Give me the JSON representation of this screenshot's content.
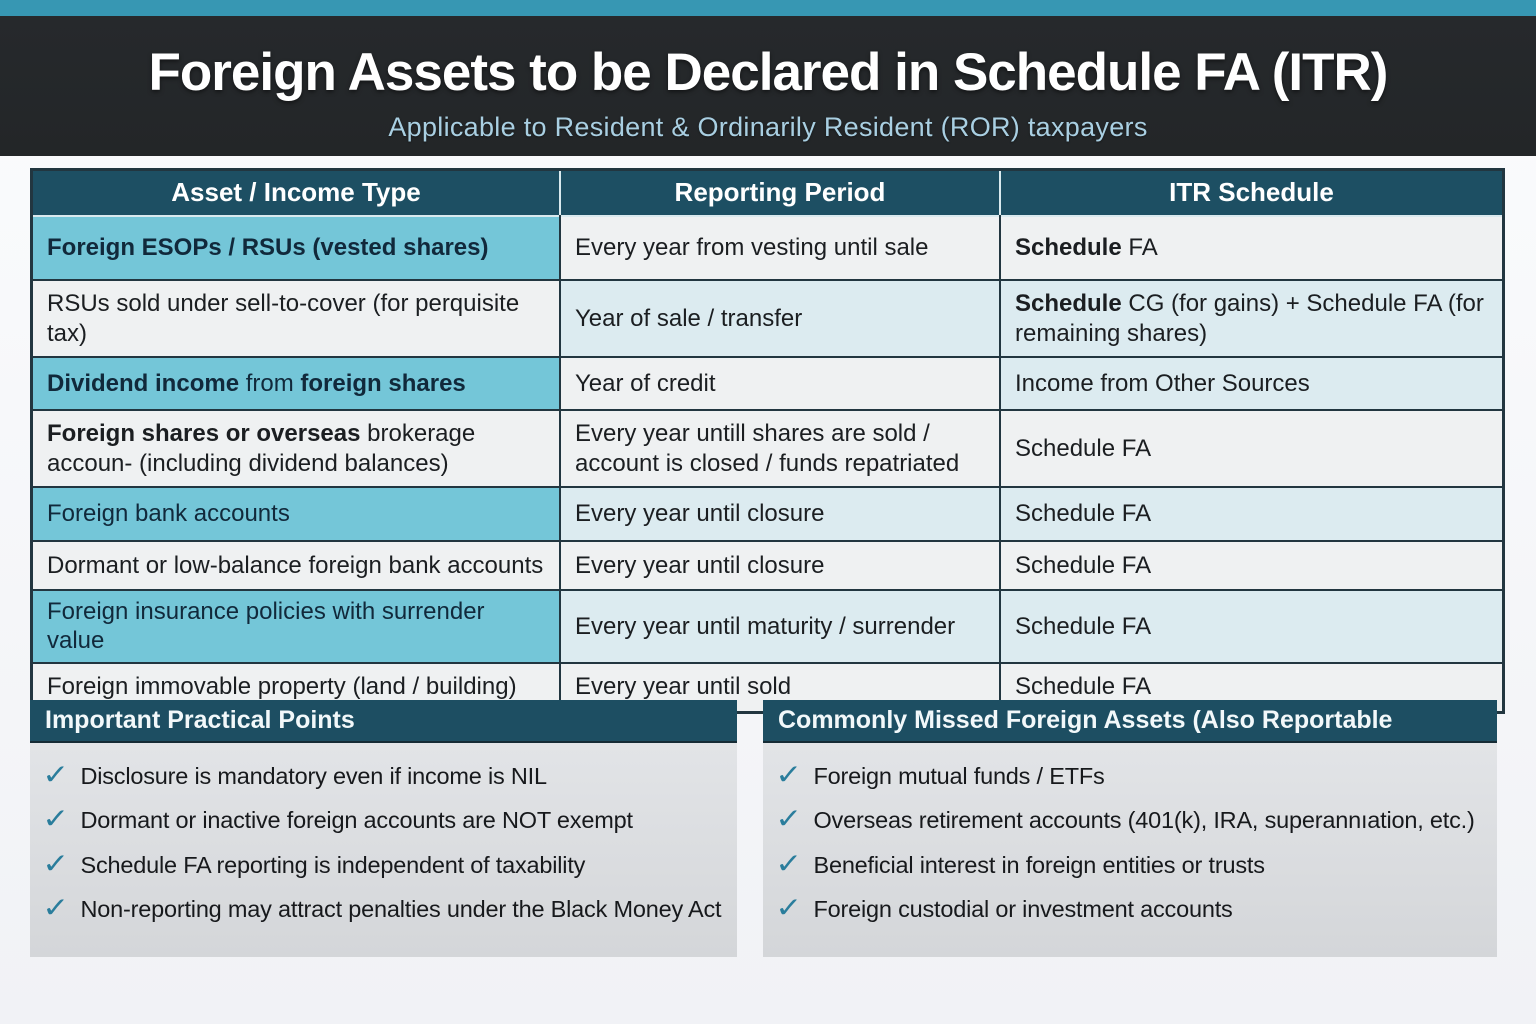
{
  "header": {
    "title": "Foreign Assets to be Declared in Schedule FA (ITR)",
    "subtitle": "Applicable to Resident & Ordinarily Resident (ROR) taxpayers"
  },
  "table": {
    "columns": [
      "Asset / Income Type",
      "Reporting Period",
      "ITR Schedule"
    ],
    "rows": [
      {
        "asset": [
          {
            "t": "Foreign ESOPs / RSUs (vested shares)",
            "b": true
          }
        ],
        "period": [
          {
            "t": "Every year from vesting until sale"
          }
        ],
        "schedule": [
          {
            "t": "Schedule",
            "b": true
          },
          {
            "t": " FA"
          }
        ],
        "asset_bg": "teal",
        "period_bg": "white",
        "schedule_bg": "white"
      },
      {
        "asset": [
          {
            "t": "RSUs sold under sell-to-cover (for perquisite tax)"
          }
        ],
        "period": [
          {
            "t": "Year of sale / transfer"
          }
        ],
        "schedule": [
          {
            "t": "Schedule",
            "b": true
          },
          {
            "t": " CG (for gains) + Schedule FA (for remaining shares)"
          }
        ],
        "asset_bg": "white",
        "period_bg": "blue",
        "schedule_bg": "blue"
      },
      {
        "asset": [
          {
            "t": "Dividend income ",
            "b": true
          },
          {
            "t": "from "
          },
          {
            "t": "foreign shares",
            "b": true
          }
        ],
        "period": [
          {
            "t": "Year of credit"
          }
        ],
        "schedule": [
          {
            "t": "Income from Other Sources"
          }
        ],
        "asset_bg": "teal",
        "period_bg": "white",
        "schedule_bg": "blue"
      },
      {
        "asset": [
          {
            "t": "Foreign shares or overseas",
            "b": true
          },
          {
            "t": " brokerage accoun- (including dividend balances)"
          }
        ],
        "period": [
          {
            "t": "Every year untill shares are sold / account is closed / funds repatriated"
          }
        ],
        "schedule": [
          {
            "t": "Schedule FA"
          }
        ],
        "asset_bg": "white",
        "period_bg": "white",
        "schedule_bg": "white"
      },
      {
        "asset": [
          {
            "t": "Foreign bank accounts"
          }
        ],
        "period": [
          {
            "t": "Every year until closure"
          }
        ],
        "schedule": [
          {
            "t": "Schedule FA"
          }
        ],
        "asset_bg": "teal",
        "period_bg": "blue",
        "schedule_bg": "blue"
      },
      {
        "asset": [
          {
            "t": "Dormant or low-balance foreign bank accounts"
          }
        ],
        "period": [
          {
            "t": "Every year until closure"
          }
        ],
        "schedule": [
          {
            "t": "Schedule FA"
          }
        ],
        "asset_bg": "white",
        "period_bg": "white",
        "schedule_bg": "white"
      },
      {
        "asset": [
          {
            "t": "Foreign insurance policies with surrender value"
          }
        ],
        "period": [
          {
            "t": "Every year until maturity / surrender"
          }
        ],
        "schedule": [
          {
            "t": "Schedule FA"
          }
        ],
        "asset_bg": "teal",
        "period_bg": "blue",
        "schedule_bg": "blue"
      },
      {
        "asset": [
          {
            "t": "Foreign immovable property (land / building)"
          }
        ],
        "period": [
          {
            "t": "Every year until sold"
          }
        ],
        "schedule": [
          {
            "t": "Schedule FA"
          }
        ],
        "asset_bg": "white",
        "period_bg": "white",
        "schedule_bg": "white"
      }
    ]
  },
  "boxes": [
    {
      "title": "Important Practical Points",
      "items": [
        "Disclosure is mandatory even if income is NIL",
        "Dormant or inactive foreign accounts are NOT exempt",
        "Schedule FA reporting is independent of taxability",
        "Non-reporting may attract penalties under the Black Money Act"
      ]
    },
    {
      "title": "Commonly Missed Foreign Assets (Also Reportable",
      "items": [
        "Foreign mutual funds / ETFs",
        "Overseas retirement accounts (401(k), IRA, superannıation, etc.)",
        "Beneficial interest in foreign entities or trusts",
        "Foreign custodial or investment accounts"
      ]
    }
  ],
  "icons": {
    "check": "✓"
  },
  "colors": {
    "accent_teal": "#3797b3",
    "header_dark": "#26292b",
    "table_header": "#1d4f63",
    "cell_teal": "#74c6d8",
    "cell_blue": "#dcebf0",
    "cell_white": "#eff1f2",
    "check_teal": "#2a7d9c"
  }
}
